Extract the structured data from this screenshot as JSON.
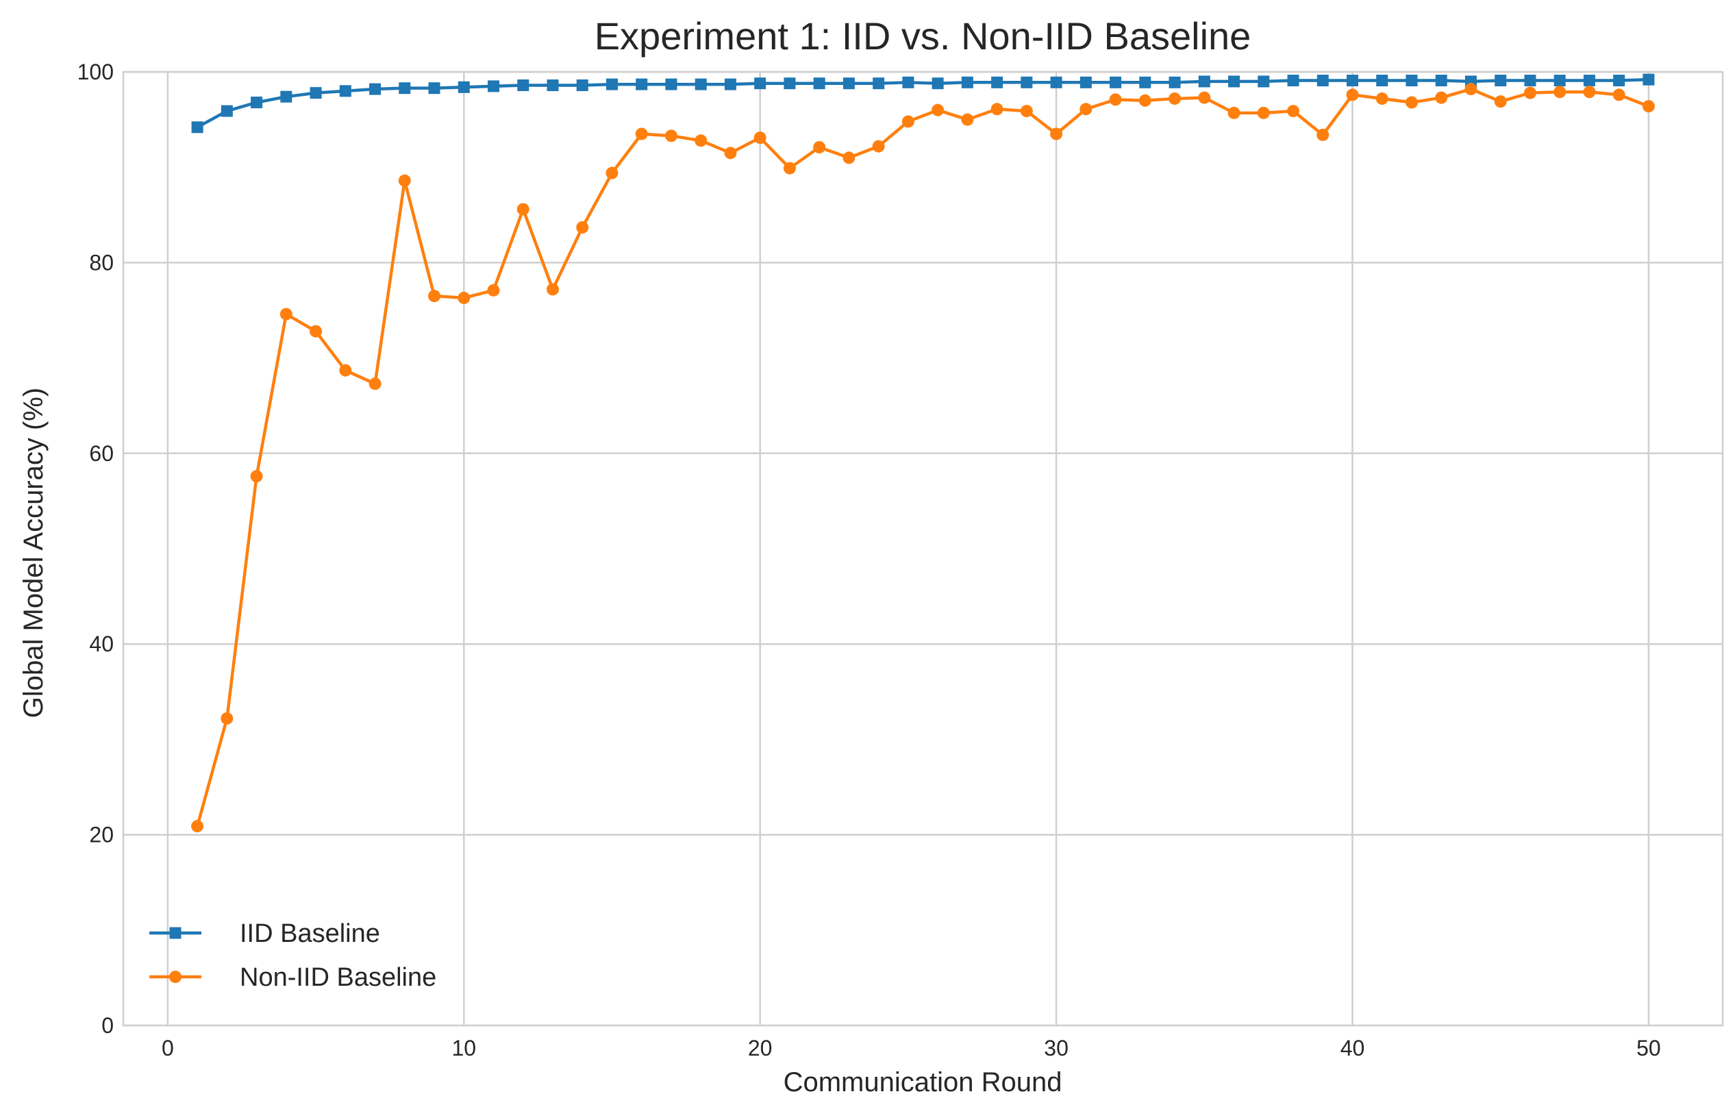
{
  "chart_data": {
    "type": "line",
    "title": "Experiment 1: IID vs. Non-IID Baseline",
    "xlabel": "Communication Round",
    "ylabel": "Global Model Accuracy (%)",
    "xlim": [
      -1.5,
      52.5
    ],
    "ylim": [
      0,
      100
    ],
    "xticks": [
      0,
      10,
      20,
      30,
      40,
      50
    ],
    "yticks": [
      0,
      20,
      40,
      60,
      80,
      100
    ],
    "grid": true,
    "legend_position": "lower-left",
    "x": [
      1,
      2,
      3,
      4,
      5,
      6,
      7,
      8,
      9,
      10,
      11,
      12,
      13,
      14,
      15,
      16,
      17,
      18,
      19,
      20,
      21,
      22,
      23,
      24,
      25,
      26,
      27,
      28,
      29,
      30,
      31,
      32,
      33,
      34,
      35,
      36,
      37,
      38,
      39,
      40,
      41,
      42,
      43,
      44,
      45,
      46,
      47,
      48,
      49,
      50
    ],
    "series": [
      {
        "name": "IID Baseline",
        "color": "#1f77b4",
        "marker": "square",
        "values": [
          94.2,
          95.9,
          96.8,
          97.4,
          97.8,
          98.0,
          98.2,
          98.3,
          98.3,
          98.4,
          98.5,
          98.6,
          98.6,
          98.6,
          98.7,
          98.7,
          98.7,
          98.7,
          98.7,
          98.8,
          98.8,
          98.8,
          98.8,
          98.8,
          98.9,
          98.8,
          98.9,
          98.9,
          98.9,
          98.9,
          98.9,
          98.9,
          98.9,
          98.9,
          99.0,
          99.0,
          99.0,
          99.1,
          99.1,
          99.1,
          99.1,
          99.1,
          99.1,
          99.0,
          99.1,
          99.1,
          99.1,
          99.1,
          99.1,
          99.2
        ]
      },
      {
        "name": "Non-IID Baseline",
        "color": "#ff7f0e",
        "marker": "circle",
        "values": [
          20.9,
          32.2,
          57.6,
          74.6,
          72.8,
          68.7,
          67.3,
          88.6,
          76.5,
          76.3,
          77.1,
          85.6,
          77.2,
          83.7,
          89.4,
          93.5,
          93.3,
          92.8,
          91.5,
          93.1,
          89.9,
          92.1,
          91.0,
          92.2,
          94.8,
          96.0,
          95.0,
          96.1,
          95.9,
          93.5,
          96.1,
          97.1,
          97.0,
          97.2,
          97.3,
          95.7,
          95.7,
          95.9,
          93.4,
          97.6,
          97.2,
          96.8,
          97.3,
          98.2,
          96.9,
          97.8,
          97.9,
          97.9,
          97.6,
          96.4
        ]
      }
    ]
  }
}
